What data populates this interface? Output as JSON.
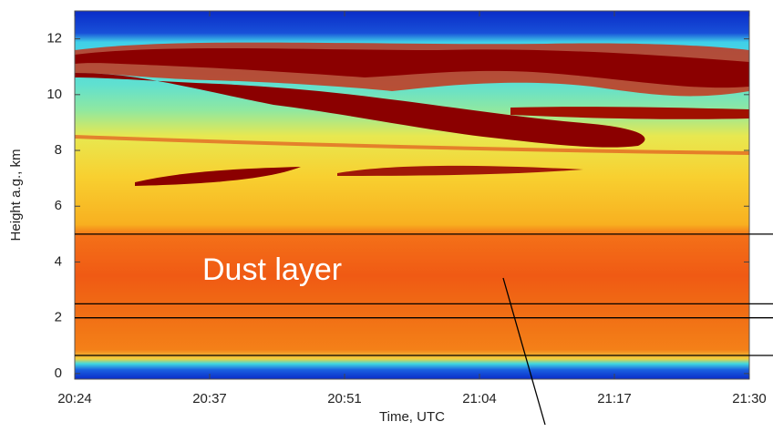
{
  "chart_data": {
    "type": "heatmap",
    "xlabel": "Time, UTC",
    "ylabel": "Height a.g., km",
    "xticks": [
      "20:24",
      "20:37",
      "20:51",
      "21:04",
      "21:17",
      "21:30"
    ],
    "ylim": [
      -0.2,
      13
    ],
    "yticks": [
      0,
      2,
      4,
      6,
      8,
      10,
      12
    ],
    "annotation": "Dust layer",
    "hlines": [
      5,
      2.5,
      2,
      0.65
    ]
  }
}
